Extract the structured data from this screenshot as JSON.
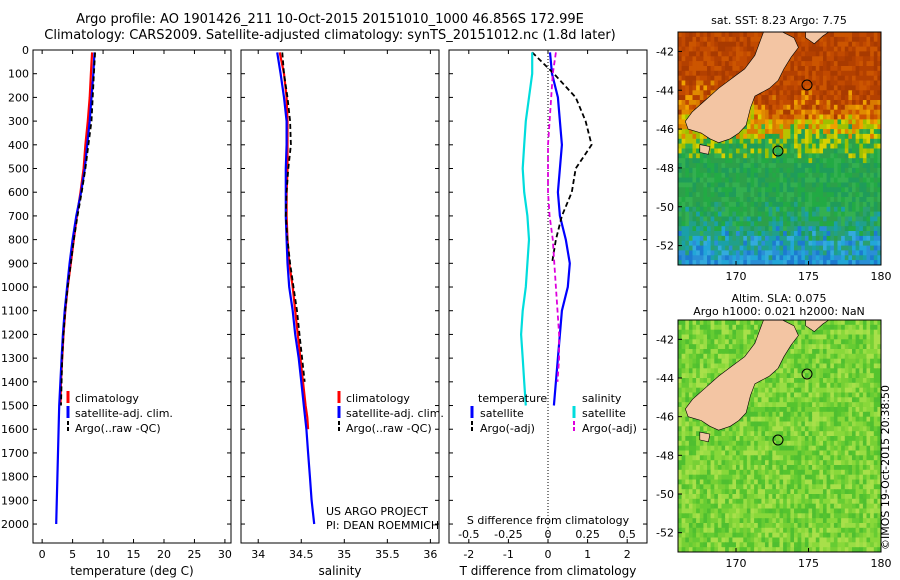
{
  "header": {
    "title_line1": "Argo profile: AO 1901426_211 10-Oct-2015 20151010_1000 46.856S 172.99E",
    "title_line2": "Climatology: CARS2009. Satellite-adjusted climatology: synTS_20151012.nc (1.8d later)"
  },
  "watermark": "©IMOS 19-Oct-2015 20:38:50",
  "project_text": {
    "line1": "US ARGO PROJECT",
    "line2": "PI: DEAN ROEMMICH"
  },
  "colors": {
    "climatology": "#ff0000",
    "satellite": "#0000ff",
    "argo": "#000000",
    "salinity_satellite": "#00dddd",
    "salinity_argo": "#dd00dd",
    "land": "#f3c5a3"
  },
  "depth_axis": {
    "ticks": [
      "0",
      "100",
      "200",
      "300",
      "400",
      "500",
      "600",
      "700",
      "800",
      "900",
      "1000",
      "1100",
      "1200",
      "1300",
      "1400",
      "1500",
      "1600",
      "1700",
      "1800",
      "1900",
      "2000"
    ],
    "range": [
      0,
      2080
    ]
  },
  "panels": {
    "temperature": {
      "xlabel": "temperature (deg C)",
      "xticks": [
        "0",
        "5",
        "10",
        "15",
        "20",
        "25",
        "30"
      ],
      "xlim": [
        -1.5,
        31
      ],
      "legend": [
        "climatology",
        "satellite-adj. clim.",
        "Argo(..raw -QC)"
      ]
    },
    "salinity": {
      "xlabel": "salinity",
      "xticks": [
        "34",
        "34.5",
        "35",
        "35.5",
        "36"
      ],
      "xlim": [
        33.8,
        36.1
      ],
      "legend": [
        "climatology",
        "satellite-adj. clim.",
        "Argo(..raw -QC)"
      ]
    },
    "difference": {
      "xlabel": "T difference from climatology",
      "s_label": "S difference from climatology",
      "t_ticks": [
        "-2",
        "-1",
        "0",
        "1",
        "2"
      ],
      "s_ticks": [
        "-0.5",
        "-0.25",
        "0",
        "0.25",
        "0.5"
      ],
      "tlim": [
        -2.5,
        2.5
      ],
      "legend_temp_header": "temperature",
      "legend_sal_header": "salinity",
      "legend_temp": [
        "satellite",
        "Argo(-adj)"
      ],
      "legend_sal": [
        "satellite",
        "Argo(-adj)"
      ]
    }
  },
  "maps": {
    "sst": {
      "title": "sat. SST: 8.23 Argo: 7.75",
      "yticks": [
        "-42",
        "-44",
        "-46",
        "-48",
        "-50",
        "-52"
      ],
      "xticks": [
        "170",
        "175",
        "180"
      ]
    },
    "sla": {
      "title_line1": "Altim. SLA: 0.075",
      "title_line2": "Argo h1000: 0.021 h2000: NaN",
      "yticks": [
        "-42",
        "-44",
        "-46",
        "-48",
        "-50",
        "-52"
      ],
      "xticks": [
        "170",
        "175",
        "180"
      ]
    },
    "extent": {
      "lon": [
        166,
        180
      ],
      "lat": [
        -53,
        -41
      ]
    },
    "argo_position": {
      "lon": 173.0,
      "lat": -46.856
    }
  },
  "chart_data": [
    {
      "type": "line",
      "title": "",
      "xlabel": "temperature (deg C)",
      "ylabel": "",
      "xlim": [
        -1.5,
        31
      ],
      "ylim": [
        2080,
        0
      ],
      "series": [
        {
          "name": "climatology",
          "x": [
            8.2,
            8.0,
            7.8,
            7.5,
            7.1,
            6.8,
            6.3,
            5.7,
            5.2,
            4.7,
            4.2,
            3.8,
            3.5,
            3.3,
            3.1,
            3.0
          ],
          "y": [
            10,
            100,
            200,
            300,
            400,
            500,
            600,
            700,
            800,
            900,
            1000,
            1100,
            1200,
            1300,
            1400,
            1500
          ]
        },
        {
          "name": "satellite-adj. clim.",
          "x": [
            8.6,
            8.4,
            8.1,
            7.8,
            7.4,
            7.0,
            6.4,
            5.6,
            5.0,
            4.5,
            4.1,
            3.7,
            3.4,
            3.2,
            3.0,
            2.8,
            2.7,
            2.6,
            2.5,
            2.4,
            2.3
          ],
          "y": [
            10,
            100,
            200,
            300,
            400,
            500,
            600,
            700,
            800,
            900,
            1000,
            1100,
            1200,
            1300,
            1400,
            1500,
            1600,
            1700,
            1800,
            1900,
            2000
          ]
        },
        {
          "name": "Argo(..raw -QC)",
          "x": [
            8.7,
            8.5,
            8.3,
            8.1,
            7.6,
            7.1,
            6.5,
            5.8,
            5.2,
            4.7,
            4.2,
            3.8,
            3.5,
            3.3,
            3.2,
            3.1
          ],
          "y": [
            10,
            100,
            200,
            300,
            400,
            500,
            600,
            700,
            800,
            900,
            1000,
            1100,
            1200,
            1300,
            1400,
            1500
          ]
        }
      ]
    },
    {
      "type": "line",
      "title": "",
      "xlabel": "salinity",
      "ylabel": "",
      "xlim": [
        33.8,
        36.1
      ],
      "ylim": [
        2080,
        0
      ],
      "series": [
        {
          "name": "climatology",
          "x": [
            34.25,
            34.3,
            34.33,
            34.34,
            34.34,
            34.34,
            34.33,
            34.33,
            34.34,
            34.36,
            34.4,
            34.43,
            34.46,
            34.49,
            34.52,
            34.55,
            34.57,
            34.58
          ],
          "y": [
            10,
            100,
            200,
            300,
            400,
            500,
            600,
            700,
            800,
            900,
            1000,
            1100,
            1200,
            1300,
            1400,
            1500,
            1550,
            1600
          ]
        },
        {
          "name": "satellite-adj. clim.",
          "x": [
            34.22,
            34.26,
            34.3,
            34.33,
            34.33,
            34.32,
            34.32,
            34.32,
            34.33,
            34.34,
            34.36,
            34.4,
            34.43,
            34.47,
            34.5,
            34.53,
            34.56,
            34.58,
            34.6,
            34.62,
            34.65
          ],
          "y": [
            10,
            100,
            200,
            300,
            400,
            500,
            600,
            700,
            800,
            900,
            1000,
            1100,
            1200,
            1300,
            1400,
            1500,
            1600,
            1700,
            1800,
            1900,
            2000
          ]
        },
        {
          "name": "Argo(..raw -QC)",
          "x": [
            34.28,
            34.3,
            34.34,
            34.37,
            34.38,
            34.35,
            34.33,
            34.32,
            34.34,
            34.37,
            34.41,
            34.45,
            34.48,
            34.51,
            34.54
          ],
          "y": [
            10,
            100,
            200,
            300,
            400,
            500,
            600,
            700,
            800,
            900,
            1000,
            1100,
            1200,
            1300,
            1400
          ]
        }
      ]
    },
    {
      "type": "line",
      "title": "",
      "xlabel": "T difference from climatology",
      "ylabel": "",
      "xlim": [
        -2.5,
        2.5
      ],
      "ylim": [
        2080,
        0
      ],
      "series": [
        {
          "name": "satellite",
          "group": "temperature",
          "x": [
            0.05,
            0.1,
            0.25,
            0.3,
            0.35,
            0.3,
            0.25,
            0.3,
            0.45,
            0.55,
            0.5,
            0.35,
            0.3,
            0.25,
            0.2,
            0.15
          ],
          "y": [
            10,
            100,
            200,
            300,
            400,
            500,
            600,
            700,
            800,
            900,
            1000,
            1100,
            1200,
            1300,
            1400,
            1500
          ]
        },
        {
          "name": "Argo(-adj)",
          "group": "temperature",
          "x": [
            -0.4,
            0.15,
            0.7,
            0.95,
            1.1,
            0.7,
            0.6,
            0.35,
            0.2,
            0.1
          ],
          "y": [
            10,
            100,
            200,
            300,
            400,
            500,
            600,
            700,
            800,
            900
          ]
        },
        {
          "name": "satellite",
          "group": "salinity",
          "x": [
            -0.1,
            -0.1,
            -0.12,
            -0.14,
            -0.15,
            -0.16,
            -0.15,
            -0.13,
            -0.12,
            -0.13,
            -0.14,
            -0.16,
            -0.17,
            -0.16,
            -0.15,
            -0.14
          ],
          "y": [
            10,
            100,
            200,
            300,
            400,
            500,
            600,
            700,
            800,
            900,
            1000,
            1100,
            1200,
            1300,
            1400,
            1500
          ]
        },
        {
          "name": "Argo(-adj)",
          "group": "salinity",
          "x": [
            0.05,
            0.03,
            0.02,
            0.01,
            0.0,
            0.0,
            0.0,
            0.01,
            0.03,
            0.04,
            0.05,
            0.06,
            0.07,
            0.07,
            0.06
          ],
          "y": [
            10,
            100,
            200,
            300,
            400,
            500,
            600,
            700,
            800,
            900,
            1000,
            1100,
            1200,
            1300,
            1400
          ]
        }
      ]
    }
  ]
}
